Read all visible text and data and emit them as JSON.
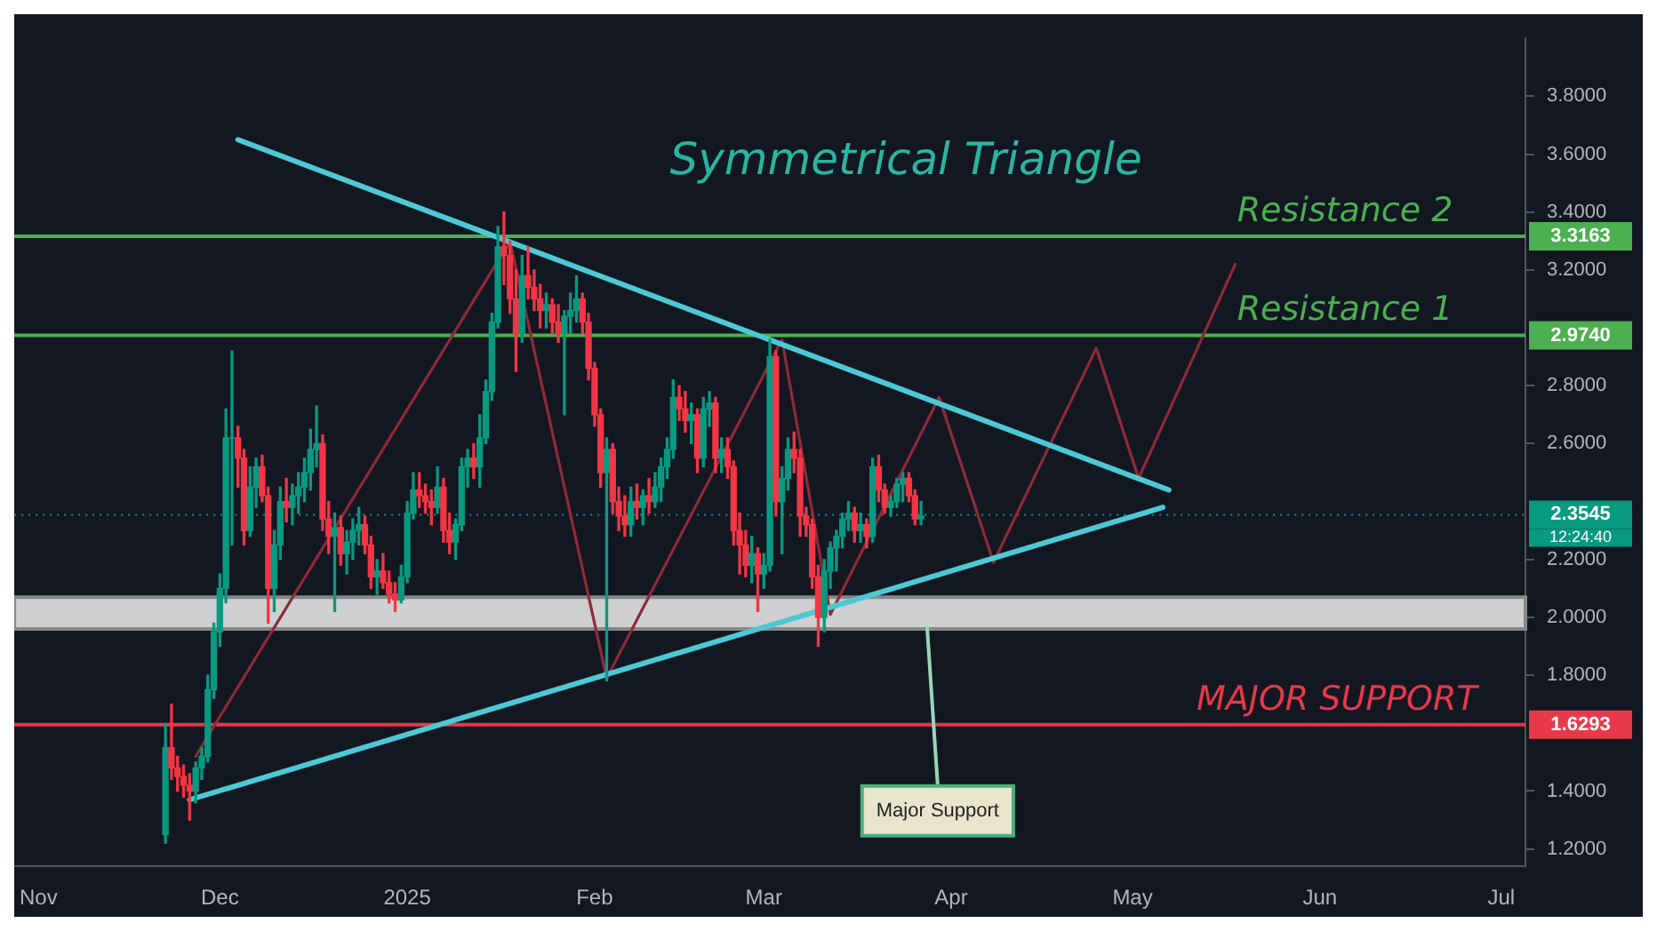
{
  "chart_data": {
    "type": "candlestick",
    "title": "Symmetrical Triangle",
    "x": [
      "2024-11-22",
      "2024-11-23",
      "2024-11-24",
      "2024-11-25",
      "2024-11-26",
      "2024-11-27",
      "2024-11-28",
      "2024-11-29",
      "2024-11-30",
      "2024-12-01",
      "2024-12-02",
      "2024-12-03",
      "2024-12-04",
      "2024-12-05",
      "2024-12-06",
      "2024-12-07",
      "2024-12-08",
      "2024-12-09",
      "2024-12-10",
      "2024-12-11",
      "2024-12-12",
      "2024-12-13",
      "2024-12-14",
      "2024-12-15",
      "2024-12-16",
      "2024-12-17",
      "2024-12-18",
      "2024-12-19",
      "2024-12-20",
      "2024-12-21",
      "2024-12-22",
      "2024-12-23",
      "2024-12-24",
      "2024-12-25",
      "2024-12-26",
      "2024-12-27",
      "2024-12-28",
      "2024-12-29",
      "2024-12-30",
      "2024-12-31",
      "2025-01-01",
      "2025-01-02",
      "2025-01-03",
      "2025-01-04",
      "2025-01-05",
      "2025-01-06",
      "2025-01-07",
      "2025-01-08",
      "2025-01-09",
      "2025-01-10",
      "2025-01-11",
      "2025-01-12",
      "2025-01-13",
      "2025-01-14",
      "2025-01-15",
      "2025-01-16",
      "2025-01-17",
      "2025-01-18",
      "2025-01-19",
      "2025-01-20",
      "2025-01-21",
      "2025-01-22",
      "2025-01-23",
      "2025-01-24",
      "2025-01-25",
      "2025-01-26",
      "2025-01-27",
      "2025-01-28",
      "2025-01-29",
      "2025-01-30",
      "2025-01-31",
      "2025-02-01",
      "2025-02-02",
      "2025-02-03",
      "2025-02-04",
      "2025-02-05",
      "2025-02-06",
      "2025-02-07",
      "2025-02-08",
      "2025-02-09",
      "2025-02-10",
      "2025-02-11",
      "2025-02-12",
      "2025-02-13",
      "2025-02-14",
      "2025-02-15",
      "2025-02-16",
      "2025-02-17",
      "2025-02-18",
      "2025-02-19",
      "2025-02-20",
      "2025-02-21",
      "2025-02-22",
      "2025-02-23",
      "2025-02-24",
      "2025-02-25",
      "2025-02-26",
      "2025-02-27",
      "2025-02-28",
      "2025-03-01",
      "2025-03-02",
      "2025-03-03",
      "2025-03-04",
      "2025-03-05",
      "2025-03-06",
      "2025-03-07",
      "2025-03-08",
      "2025-03-09",
      "2025-03-10",
      "2025-03-11",
      "2025-03-12",
      "2025-03-13",
      "2025-03-14",
      "2025-03-15",
      "2025-03-16",
      "2025-03-17",
      "2025-03-18",
      "2025-03-19",
      "2025-03-20",
      "2025-03-21",
      "2025-03-22",
      "2025-03-23",
      "2025-03-24",
      "2025-03-25",
      "2025-03-26",
      "2025-03-27"
    ],
    "ohlc": [
      [
        1.25,
        1.63,
        1.22,
        1.55
      ],
      [
        1.55,
        1.7,
        1.44,
        1.48
      ],
      [
        1.48,
        1.52,
        1.4,
        1.45
      ],
      [
        1.45,
        1.49,
        1.38,
        1.42
      ],
      [
        1.42,
        1.46,
        1.3,
        1.4
      ],
      [
        1.4,
        1.5,
        1.36,
        1.48
      ],
      [
        1.48,
        1.55,
        1.44,
        1.52
      ],
      [
        1.52,
        1.8,
        1.5,
        1.75
      ],
      [
        1.75,
        1.98,
        1.72,
        1.95
      ],
      [
        1.95,
        2.15,
        1.9,
        2.1
      ],
      [
        2.1,
        2.72,
        2.05,
        2.62
      ],
      [
        2.62,
        2.92,
        2.25,
        2.62
      ],
      [
        2.62,
        2.66,
        2.45,
        2.55
      ],
      [
        2.55,
        2.58,
        2.25,
        2.3
      ],
      [
        2.3,
        2.52,
        2.28,
        2.45
      ],
      [
        2.45,
        2.55,
        2.38,
        2.52
      ],
      [
        2.52,
        2.56,
        2.4,
        2.42
      ],
      [
        2.42,
        2.45,
        1.98,
        2.1
      ],
      [
        2.1,
        2.3,
        2.02,
        2.25
      ],
      [
        2.25,
        2.45,
        2.2,
        2.4
      ],
      [
        2.4,
        2.48,
        2.33,
        2.38
      ],
      [
        2.38,
        2.46,
        2.32,
        2.42
      ],
      [
        2.42,
        2.5,
        2.36,
        2.45
      ],
      [
        2.45,
        2.55,
        2.4,
        2.5
      ],
      [
        2.5,
        2.65,
        2.44,
        2.58
      ],
      [
        2.58,
        2.73,
        2.52,
        2.6
      ],
      [
        2.6,
        2.63,
        2.3,
        2.34
      ],
      [
        2.34,
        2.4,
        2.22,
        2.28
      ],
      [
        2.28,
        2.36,
        2.02,
        2.31
      ],
      [
        2.31,
        2.35,
        2.18,
        2.22
      ],
      [
        2.22,
        2.3,
        2.15,
        2.26
      ],
      [
        2.26,
        2.34,
        2.2,
        2.3
      ],
      [
        2.3,
        2.38,
        2.25,
        2.32
      ],
      [
        2.32,
        2.35,
        2.22,
        2.25
      ],
      [
        2.25,
        2.28,
        2.1,
        2.14
      ],
      [
        2.14,
        2.2,
        2.08,
        2.16
      ],
      [
        2.16,
        2.22,
        2.1,
        2.12
      ],
      [
        2.12,
        2.16,
        2.05,
        2.08
      ],
      [
        2.08,
        2.12,
        2.02,
        2.06
      ],
      [
        2.06,
        2.18,
        2.05,
        2.14
      ],
      [
        2.14,
        2.4,
        2.12,
        2.36
      ],
      [
        2.36,
        2.5,
        2.34,
        2.44
      ],
      [
        2.44,
        2.5,
        2.38,
        2.42
      ],
      [
        2.42,
        2.46,
        2.36,
        2.4
      ],
      [
        2.4,
        2.44,
        2.32,
        2.38
      ],
      [
        2.38,
        2.52,
        2.36,
        2.45
      ],
      [
        2.45,
        2.48,
        2.26,
        2.3
      ],
      [
        2.3,
        2.36,
        2.22,
        2.26
      ],
      [
        2.26,
        2.34,
        2.2,
        2.32
      ],
      [
        2.32,
        2.55,
        2.3,
        2.52
      ],
      [
        2.52,
        2.58,
        2.45,
        2.55
      ],
      [
        2.55,
        2.6,
        2.48,
        2.52
      ],
      [
        2.52,
        2.7,
        2.45,
        2.62
      ],
      [
        2.62,
        2.82,
        2.6,
        2.78
      ],
      [
        2.78,
        3.05,
        2.75,
        3.02
      ],
      [
        3.02,
        3.35,
        3.0,
        3.28
      ],
      [
        3.28,
        3.4,
        3.15,
        3.25
      ],
      [
        3.25,
        3.3,
        3.05,
        3.1
      ],
      [
        3.1,
        3.2,
        2.85,
        2.98
      ],
      [
        2.98,
        3.25,
        2.95,
        3.18
      ],
      [
        3.18,
        3.28,
        3.1,
        3.14
      ],
      [
        3.14,
        3.2,
        3.06,
        3.1
      ],
      [
        3.1,
        3.15,
        3.0,
        3.06
      ],
      [
        3.06,
        3.12,
        3.0,
        3.08
      ],
      [
        3.08,
        3.1,
        2.98,
        3.02
      ],
      [
        3.02,
        3.08,
        2.95,
        2.98
      ],
      [
        2.98,
        3.06,
        2.7,
        3.04
      ],
      [
        3.04,
        3.12,
        2.98,
        3.06
      ],
      [
        3.06,
        3.18,
        3.02,
        3.1
      ],
      [
        3.1,
        3.12,
        2.98,
        3.02
      ],
      [
        3.02,
        3.05,
        2.82,
        2.86
      ],
      [
        2.86,
        2.88,
        2.66,
        2.7
      ],
      [
        2.7,
        2.72,
        2.45,
        2.5
      ],
      [
        2.5,
        2.62,
        1.78,
        2.58
      ],
      [
        2.58,
        2.6,
        2.36,
        2.4
      ],
      [
        2.4,
        2.45,
        2.3,
        2.35
      ],
      [
        2.35,
        2.42,
        2.28,
        2.32
      ],
      [
        2.32,
        2.45,
        2.28,
        2.4
      ],
      [
        2.4,
        2.46,
        2.34,
        2.38
      ],
      [
        2.38,
        2.44,
        2.32,
        2.42
      ],
      [
        2.42,
        2.48,
        2.36,
        2.4
      ],
      [
        2.4,
        2.5,
        2.38,
        2.45
      ],
      [
        2.45,
        2.55,
        2.4,
        2.52
      ],
      [
        2.52,
        2.62,
        2.48,
        2.58
      ],
      [
        2.58,
        2.82,
        2.55,
        2.76
      ],
      [
        2.76,
        2.8,
        2.68,
        2.72
      ],
      [
        2.72,
        2.78,
        2.64,
        2.68
      ],
      [
        2.68,
        2.74,
        2.6,
        2.7
      ],
      [
        2.7,
        2.72,
        2.5,
        2.55
      ],
      [
        2.55,
        2.76,
        2.52,
        2.72
      ],
      [
        2.72,
        2.78,
        2.66,
        2.74
      ],
      [
        2.74,
        2.76,
        2.5,
        2.55
      ],
      [
        2.55,
        2.62,
        2.5,
        2.58
      ],
      [
        2.58,
        2.62,
        2.48,
        2.52
      ],
      [
        2.52,
        2.54,
        2.25,
        2.3
      ],
      [
        2.3,
        2.36,
        2.15,
        2.25
      ],
      [
        2.25,
        2.3,
        2.14,
        2.18
      ],
      [
        2.18,
        2.28,
        2.12,
        2.22
      ],
      [
        2.22,
        2.24,
        2.02,
        2.15
      ],
      [
        2.15,
        2.22,
        2.1,
        2.18
      ],
      [
        2.18,
        2.96,
        2.16,
        2.9
      ],
      [
        2.9,
        2.92,
        2.35,
        2.4
      ],
      [
        2.4,
        2.52,
        2.22,
        2.48
      ],
      [
        2.48,
        2.62,
        2.44,
        2.58
      ],
      [
        2.58,
        2.64,
        2.5,
        2.55
      ],
      [
        2.55,
        2.58,
        2.28,
        2.35
      ],
      [
        2.35,
        2.38,
        2.28,
        2.32
      ],
      [
        2.32,
        2.34,
        2.1,
        2.14
      ],
      [
        2.14,
        2.18,
        1.9,
        2.0
      ],
      [
        2.0,
        2.2,
        1.95,
        2.16
      ],
      [
        2.16,
        2.26,
        2.1,
        2.24
      ],
      [
        2.24,
        2.3,
        2.16,
        2.28
      ],
      [
        2.28,
        2.36,
        2.24,
        2.34
      ],
      [
        2.34,
        2.4,
        2.3,
        2.36
      ],
      [
        2.36,
        2.38,
        2.26,
        2.3
      ],
      [
        2.3,
        2.36,
        2.26,
        2.32
      ],
      [
        2.32,
        2.34,
        2.24,
        2.28
      ],
      [
        2.28,
        2.55,
        2.26,
        2.52
      ],
      [
        2.52,
        2.56,
        2.4,
        2.44
      ],
      [
        2.44,
        2.46,
        2.36,
        2.38
      ],
      [
        2.38,
        2.42,
        2.35,
        2.4
      ],
      [
        2.4,
        2.48,
        2.38,
        2.46
      ],
      [
        2.46,
        2.5,
        2.4,
        2.48
      ],
      [
        2.48,
        2.5,
        2.4,
        2.42
      ],
      [
        2.42,
        2.44,
        2.32,
        2.34
      ],
      [
        2.34,
        2.4,
        2.32,
        2.35
      ]
    ],
    "series": [
      {
        "type": "line",
        "color": "#4cc9d4",
        "x": [
          "2024-12-04",
          "2025-05-07"
        ],
        "values": [
          3.65,
          2.44
        ]
      },
      {
        "type": "line",
        "color": "#4cc9d4",
        "x": [
          "2024-11-26",
          "2025-05-06"
        ],
        "values": [
          1.37,
          2.38
        ]
      },
      {
        "type": "line",
        "color": "#8e2a38",
        "x": [
          "2024-11-27",
          "2025-01-18",
          "2025-02-03",
          "2025-03-04",
          "2025-03-12",
          "2025-03-30",
          "2025-04-08",
          "2025-04-25",
          "2025-05-02",
          "2025-05-18"
        ],
        "values": [
          1.52,
          3.3,
          1.79,
          2.96,
          2.01,
          2.76,
          2.19,
          2.93,
          2.48,
          3.22
        ]
      }
    ],
    "xlim": [
      "2024-10-28",
      "2025-07-05"
    ],
    "xticks": [
      {
        "value": "2024-11-01",
        "label": "Nov"
      },
      {
        "value": "2024-12-01",
        "label": "Dec"
      },
      {
        "value": "2025-01-01",
        "label": "2025"
      },
      {
        "value": "2025-02-01",
        "label": "Feb"
      },
      {
        "value": "2025-03-01",
        "label": "Mar"
      },
      {
        "value": "2025-04-01",
        "label": "Apr"
      },
      {
        "value": "2025-05-01",
        "label": "May"
      },
      {
        "value": "2025-06-01",
        "label": "Jun"
      },
      {
        "value": "2025-07-01",
        "label": "Jul"
      }
    ],
    "ylim": [
      1.14,
      4.0
    ],
    "yticks": [
      {
        "value": 1.2,
        "label": "1.2000"
      },
      {
        "value": 1.4,
        "label": "1.4000"
      },
      {
        "value": 1.8,
        "label": "1.8000"
      },
      {
        "value": 2.0,
        "label": "2.0000"
      },
      {
        "value": 2.2,
        "label": "2.2000"
      },
      {
        "value": 2.6,
        "label": "2.6000"
      },
      {
        "value": 2.8,
        "label": "2.8000"
      },
      {
        "value": 3.2,
        "label": "3.2000"
      },
      {
        "value": 3.4,
        "label": "3.4000"
      },
      {
        "value": 3.6,
        "label": "3.6000"
      },
      {
        "value": 3.8,
        "label": "3.8000"
      }
    ],
    "ref_lines": [
      {
        "axis": "y",
        "value": 3.3163,
        "label": "3.3163",
        "color": "#4caf50"
      },
      {
        "axis": "y",
        "value": 2.974,
        "label": "2.9740",
        "color": "#4caf50"
      },
      {
        "axis": "y",
        "value": 1.6293,
        "label": "1.6293",
        "color": "#e8394a"
      },
      {
        "axis": "y",
        "value": 2.3545,
        "label": "2.3545",
        "color": "#089981",
        "line_style": "dotted"
      }
    ],
    "bands": [
      {
        "axis": "y",
        "from": 1.96,
        "to": 2.07,
        "color": "#e3e3e3"
      }
    ],
    "annotations": [
      {
        "text": "Resistance 2",
        "x": "2025-06-23",
        "y": 3.3163
      },
      {
        "text": "Resistance 1",
        "x": "2025-06-23",
        "y": 2.974
      },
      {
        "text": "MAJOR SUPPORT",
        "x": "2025-06-27",
        "y": 1.6293
      },
      "12:24:40",
      {
        "text": "Major Support",
        "x": "2025-03-28",
        "y": 1.97
      }
    ],
    "grid": false,
    "legend": false
  }
}
